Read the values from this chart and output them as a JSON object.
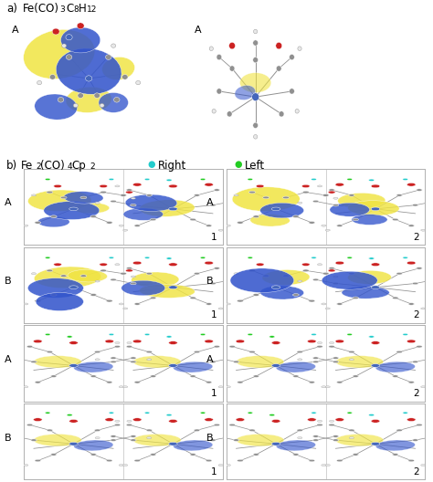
{
  "background_color": "#ffffff",
  "border_color": "#b0b0b0",
  "yellow_color": "#F0E442",
  "blue_orb_color": "#3355CC",
  "gray_atom": "#909090",
  "red_atom": "#CC2222",
  "blue_atom": "#4466BB",
  "white_atom": "#E8E8E8",
  "cyan_dot": "#22CCCC",
  "green_dot": "#22CC22",
  "font_size_title": 8.5,
  "font_size_label": 8,
  "font_size_num": 7.5,
  "figsize": [
    4.74,
    5.28
  ],
  "dpi": 100,
  "section_a_title": "a) Fe(CO)",
  "section_a_sub1": "3",
  "section_a_mid": "C",
  "section_a_sub2": "8",
  "section_a_end": "H",
  "section_a_sub3": "12",
  "section_b_title": "b) Fe",
  "section_b_sub1": "2",
  "section_b_mid": "(CO)",
  "section_b_sub2": "4",
  "section_b_end": "Cp",
  "section_b_sub3": "2",
  "legend_right": "Right",
  "legend_left": "Left",
  "row_labels": [
    "A",
    "B",
    "A",
    "B"
  ],
  "col_nums": [
    "1",
    "2"
  ]
}
